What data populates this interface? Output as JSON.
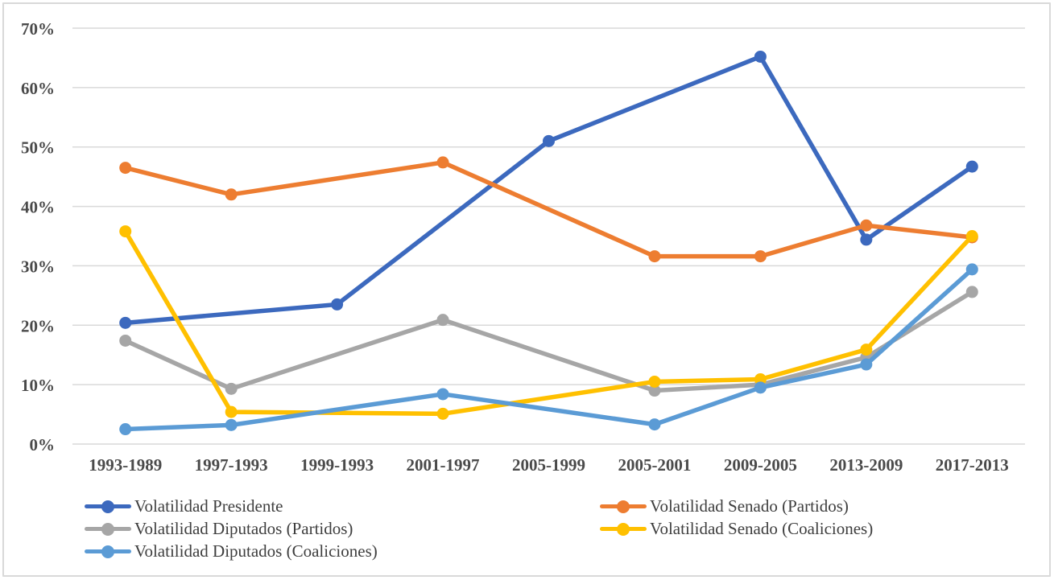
{
  "chart_data": {
    "type": "line",
    "title": "",
    "xlabel": "",
    "ylabel": "",
    "grid": true,
    "legend_position": "bottom",
    "ylim": [
      0,
      70
    ],
    "y_ticks": [
      {
        "value": 0,
        "label": "0%"
      },
      {
        "value": 10,
        "label": "10%"
      },
      {
        "value": 20,
        "label": "20%"
      },
      {
        "value": 30,
        "label": "30%"
      },
      {
        "value": 40,
        "label": "40%"
      },
      {
        "value": 50,
        "label": "50%"
      },
      {
        "value": 60,
        "label": "60%"
      },
      {
        "value": 70,
        "label": "70%"
      }
    ],
    "categories": [
      "1993-1989",
      "1997-1993",
      "1999-1993",
      "2001-1997",
      "2005-1999",
      "2005-2001",
      "2009-2005",
      "2013-2009",
      "2017-2013"
    ],
    "series": [
      {
        "name": "Volatilidad Presidente",
        "color": "#3c69be",
        "values": [
          20.4,
          null,
          23.5,
          null,
          51.0,
          null,
          65.2,
          34.4,
          46.7
        ]
      },
      {
        "name": "Volatilidad Senado (Partidos)",
        "color": "#ed7d31",
        "values": [
          46.5,
          42.0,
          null,
          47.4,
          null,
          31.6,
          31.6,
          36.8,
          34.8
        ]
      },
      {
        "name": "Volatilidad Diputados (Partidos)",
        "color": "#a6a6a6",
        "values": [
          17.4,
          9.3,
          null,
          20.9,
          null,
          9.0,
          10.0,
          14.6,
          25.6
        ]
      },
      {
        "name": "Volatilidad Senado (Coaliciones)",
        "color": "#ffc000",
        "values": [
          35.8,
          5.4,
          null,
          5.1,
          null,
          10.5,
          10.9,
          15.9,
          35.0
        ]
      },
      {
        "name": "Volatilidad Diputados (Coaliciones)",
        "color": "#5b9bd5",
        "values": [
          2.5,
          3.2,
          null,
          8.4,
          null,
          3.3,
          9.5,
          13.4,
          29.4
        ]
      }
    ]
  },
  "styles": {
    "background": "#ffffff",
    "border_color": "#d9d9d9",
    "grid_color": "#d9d9d9",
    "tick_text_color": "#4a4a4a",
    "legend_text_color": "#3e3e3e"
  }
}
